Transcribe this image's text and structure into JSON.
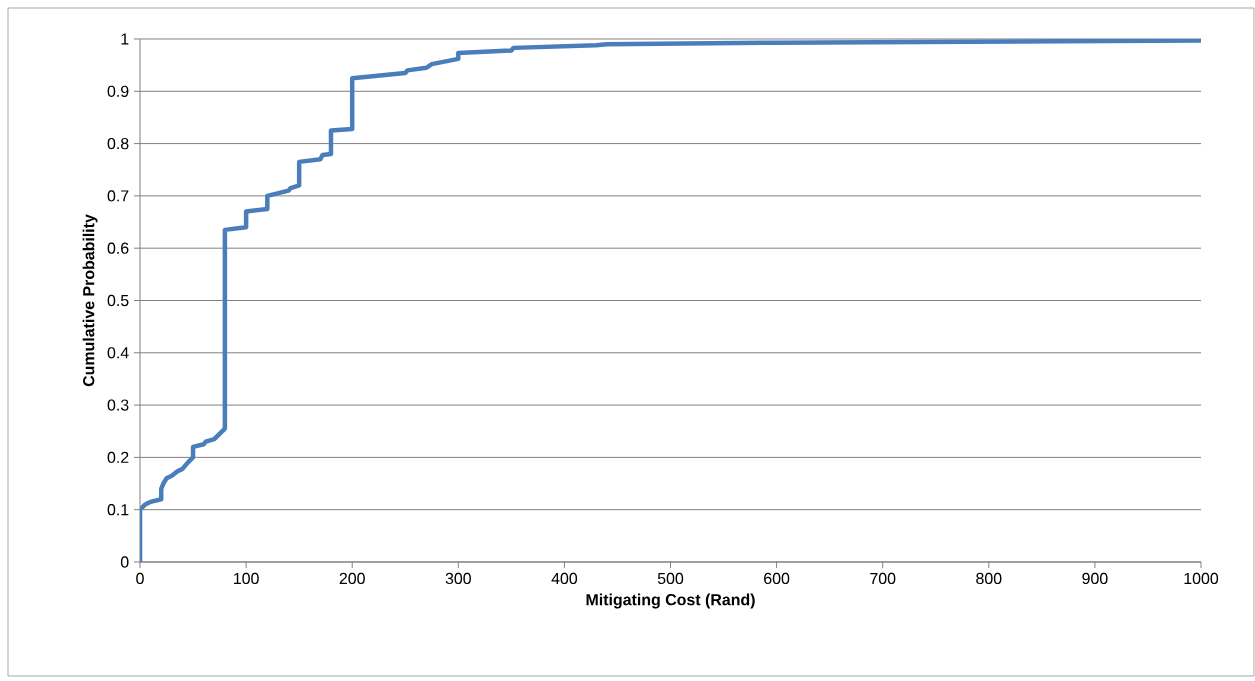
{
  "chart_data": {
    "type": "line",
    "xlabel": "Mitigating Cost (Rand)",
    "ylabel": "Cumulative Probability",
    "x": [
      0,
      0,
      5,
      10,
      20,
      20,
      22,
      25,
      30,
      35,
      40,
      45,
      50,
      50,
      60,
      62,
      70,
      75,
      80,
      80,
      100,
      100,
      120,
      120,
      140,
      142,
      150,
      150,
      170,
      172,
      180,
      180,
      200,
      200,
      250,
      252,
      270,
      275,
      300,
      300,
      350,
      352,
      430,
      440,
      600,
      1000
    ],
    "series": [
      {
        "color": "#4a7ebb",
        "values": [
          0,
          0.1,
          0.11,
          0.115,
          0.12,
          0.14,
          0.15,
          0.16,
          0.165,
          0.173,
          0.178,
          0.19,
          0.2,
          0.22,
          0.225,
          0.23,
          0.235,
          0.245,
          0.255,
          0.635,
          0.64,
          0.67,
          0.675,
          0.7,
          0.71,
          0.715,
          0.72,
          0.765,
          0.77,
          0.778,
          0.78,
          0.825,
          0.828,
          0.925,
          0.935,
          0.94,
          0.945,
          0.952,
          0.962,
          0.973,
          0.978,
          0.983,
          0.988,
          0.99,
          0.993,
          0.997
        ]
      }
    ],
    "xlim": [
      0,
      1000
    ],
    "xticks": [
      0,
      100,
      200,
      300,
      400,
      500,
      600,
      700,
      800,
      900,
      1000
    ],
    "ylim": [
      0,
      1
    ],
    "yticks": [
      0,
      0.1,
      0.2,
      0.3,
      0.4,
      0.5,
      0.6,
      0.7,
      0.8,
      0.9,
      1
    ],
    "grid": "y",
    "marker": "none",
    "line_style": "solid"
  }
}
